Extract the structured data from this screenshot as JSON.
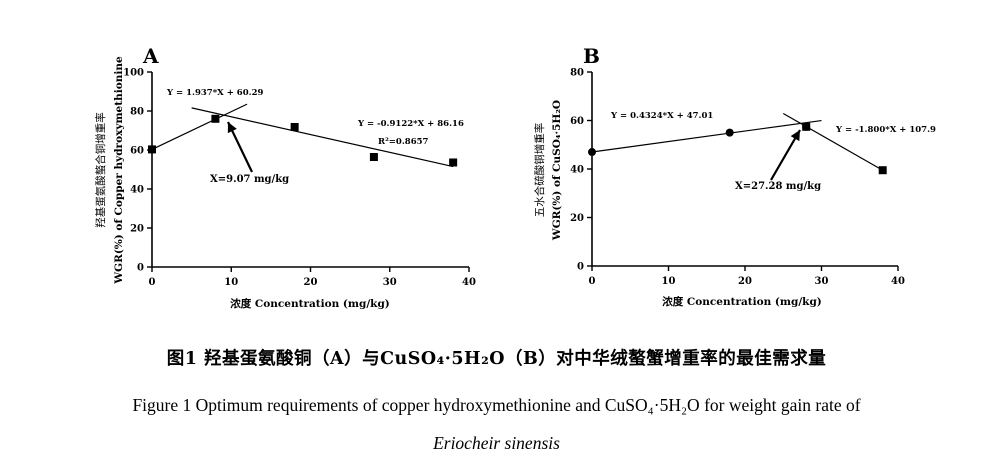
{
  "chart_data": [
    {
      "type": "line",
      "panel": "A",
      "xlabel": "浓度 Concentration (mg/kg)",
      "ylabel_zh": "羟基蛋氨酸螯合铜增重率",
      "ylabel_en": "WGR(%) of Copper hydroxymethionine",
      "xlim": [
        0,
        40
      ],
      "ylim": [
        0,
        100
      ],
      "x_ticks": [
        "0",
        "10",
        "20",
        "30",
        "40"
      ],
      "y_ticks": [
        "0",
        "20",
        "40",
        "60",
        "80",
        "100"
      ],
      "series": [
        {
          "marker": "square",
          "x": [
            0,
            8,
            18,
            28,
            38
          ],
          "y": [
            60.3,
            76.0,
            71.8,
            56.4,
            53.6
          ]
        }
      ],
      "fit_lines": [
        {
          "x": [
            0,
            12
          ],
          "y": [
            60.29,
            83.53
          ],
          "equation": "Y = 1.937*X + 60.29"
        },
        {
          "x": [
            5,
            38
          ],
          "y": [
            81.6,
            51.5
          ],
          "equation": "Y = -0.9122*X + 86.16",
          "r2": "R²=0.8657"
        }
      ],
      "optimum": {
        "x": 9.07,
        "label": "X=9.07 mg/kg"
      }
    },
    {
      "type": "line",
      "panel": "B",
      "xlabel": "浓度 Concentration (mg/kg)",
      "ylabel_zh": "五水合硫酸铜增重率",
      "ylabel_en": "WGR(%) of CuSO₄·5H₂O",
      "xlim": [
        0,
        40
      ],
      "ylim": [
        0,
        80
      ],
      "x_ticks": [
        "0",
        "10",
        "20",
        "30",
        "40"
      ],
      "y_ticks": [
        "0",
        "20",
        "40",
        "60",
        "80"
      ],
      "series": [
        {
          "marker": "circle",
          "x": [
            0,
            18,
            28
          ],
          "y": [
            47.0,
            55.0,
            57.4
          ]
        },
        {
          "marker": "square",
          "x": [
            28,
            38
          ],
          "y": [
            57.4,
            39.5
          ]
        }
      ],
      "fit_lines": [
        {
          "x": [
            0,
            30
          ],
          "y": [
            47.01,
            59.98
          ],
          "equation": "Y = 0.4324*X + 47.01"
        },
        {
          "x": [
            25,
            38
          ],
          "y": [
            62.9,
            39.5
          ],
          "equation": "Y = -1.800*X + 107.9"
        }
      ],
      "optimum": {
        "x": 27.28,
        "label": "X=27.28 mg/kg"
      }
    }
  ],
  "captions": {
    "zh": "图1 羟基蛋氨酸铜（A）与CuSO₄·5H₂O（B）对中华绒螯蟹增重率的最佳需求量",
    "en_line1": "Figure 1 Optimum requirements of copper hydroxymethionine and CuSO₄·5H₂O for weight gain rate of",
    "en_line2": "Eriocheir sinensis"
  }
}
